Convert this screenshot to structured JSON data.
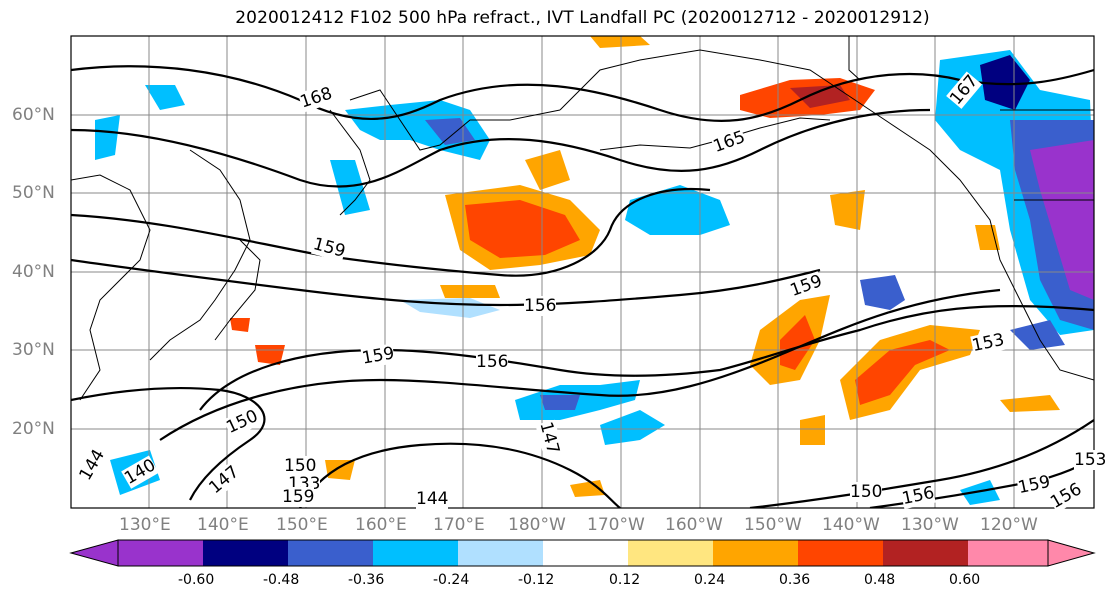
{
  "title": "2020012412 F102 500 hPa refract., IVT Landfall PC (2020012712 - 2020012912)",
  "map": {
    "region": "North Pacific",
    "lat_labels": [
      "60°N",
      "50°N",
      "40°N",
      "30°N",
      "20°N"
    ],
    "lon_labels": [
      "130°E",
      "140°E",
      "150°E",
      "160°E",
      "170°E",
      "180°W",
      "170°W",
      "160°W",
      "150°W",
      "140°W",
      "130°W",
      "120°W"
    ],
    "contour_labels": [
      "168",
      "159",
      "156",
      "159",
      "156",
      "159",
      "153",
      "150",
      "147",
      "150",
      "144",
      "150",
      "156",
      "159",
      "156",
      "153",
      "133",
      "159",
      "144",
      "140",
      "147",
      "165",
      "167"
    ],
    "contour_color": "#000000",
    "grid": true
  },
  "colorbar": {
    "ticks": [
      "-0.60",
      "-0.48",
      "-0.36",
      "-0.24",
      "-0.12",
      "0.12",
      "0.24",
      "0.36",
      "0.48",
      "0.60"
    ],
    "colors": [
      "#9933cc",
      "#000080",
      "#3a5fcd",
      "#00bfff",
      "#b0e0ff",
      "#ffffff",
      "#ffe680",
      "#ffa500",
      "#ff4500",
      "#b22222",
      "#ff88aa"
    ]
  }
}
